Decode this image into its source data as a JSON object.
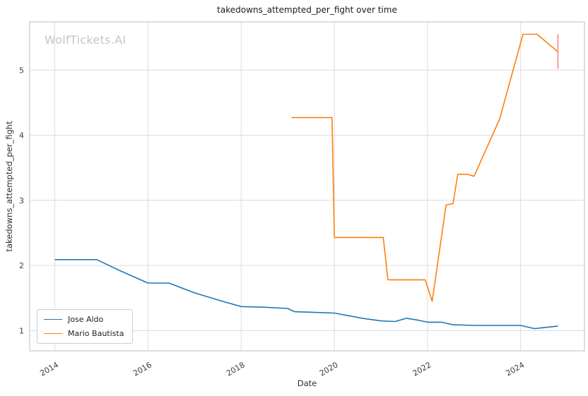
{
  "figure": {
    "title": "takedowns_attempted_per_fight over time",
    "watermark": "WolfTickets.AI",
    "x_axis_label": "Date",
    "y_axis_label": "takedowns_attempted_per_fight"
  },
  "chart_data": {
    "type": "line",
    "title": "takedowns_attempted_per_fight over time",
    "xlabel": "Date",
    "ylabel": "takedowns_attempted_per_fight",
    "grid": true,
    "legend_position": "lower left",
    "xlim": [
      2013.46,
      2025.37
    ],
    "ylim": [
      0.69,
      5.74
    ],
    "x_ticks": [
      2014,
      2016,
      2018,
      2020,
      2022,
      2024
    ],
    "y_ticks": [
      1,
      2,
      3,
      4,
      5
    ],
    "series": [
      {
        "name": "Jose Aldo",
        "color": "#1f77b4",
        "x": [
          2014.0,
          2014.9,
          2015.4,
          2016.0,
          2016.45,
          2017.0,
          2017.6,
          2018.0,
          2018.5,
          2019.0,
          2019.15,
          2019.6,
          2020.0,
          2020.3,
          2020.6,
          2021.0,
          2021.3,
          2021.55,
          2021.8,
          2022.0,
          2022.3,
          2022.55,
          2023.0,
          2023.5,
          2024.0,
          2024.3,
          2024.8
        ],
        "y": [
          2.09,
          2.09,
          1.92,
          1.73,
          1.73,
          1.58,
          1.45,
          1.37,
          1.36,
          1.34,
          1.29,
          1.28,
          1.27,
          1.23,
          1.19,
          1.15,
          1.14,
          1.19,
          1.16,
          1.13,
          1.13,
          1.09,
          1.08,
          1.08,
          1.08,
          1.03,
          1.07
        ]
      },
      {
        "name": "Mario Bautista",
        "color": "#ff7f0e",
        "x": [
          2019.08,
          2019.95,
          2020.0,
          2021.05,
          2021.15,
          2021.95,
          2022.1,
          2022.4,
          2022.55,
          2022.65,
          2022.85,
          2023.0,
          2023.55,
          2024.05,
          2024.35,
          2024.8
        ],
        "y": [
          4.27,
          4.27,
          2.43,
          2.43,
          1.78,
          1.78,
          1.45,
          2.93,
          2.95,
          3.4,
          3.4,
          3.37,
          4.25,
          5.55,
          5.55,
          5.28
        ]
      }
    ],
    "last_point_errorbar": {
      "series": "Mario Bautista",
      "x": 2024.8,
      "y_low": 5.02,
      "y_high": 5.55,
      "color": "#f2a09e"
    }
  }
}
